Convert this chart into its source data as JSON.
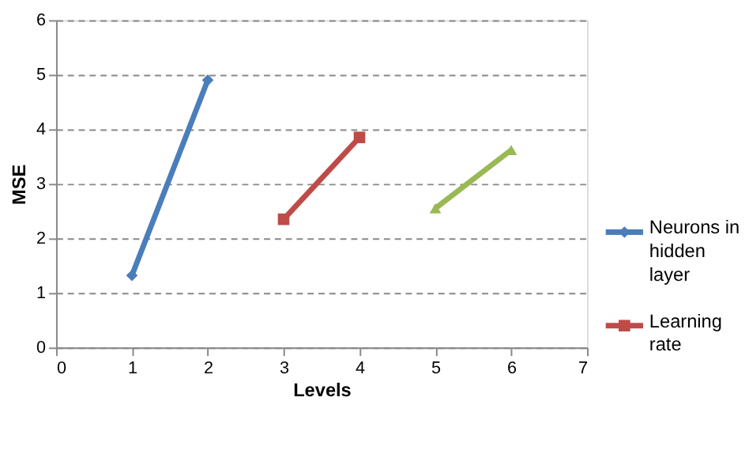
{
  "chart_data": {
    "type": "line",
    "xlabel": "Levels",
    "ylabel": "MSE",
    "xlim": [
      0,
      7
    ],
    "xticks": [
      0,
      1,
      2,
      3,
      4,
      5,
      6,
      7
    ],
    "ylim": [
      0,
      6
    ],
    "yticks": [
      0,
      1,
      2,
      3,
      4,
      5,
      6
    ],
    "grid": "y",
    "legend": "right",
    "series": [
      {
        "name": "Neurons in hidden layer",
        "color": "#4a7ebb",
        "marker": "diamond",
        "x": [
          1,
          2
        ],
        "values": [
          1.32,
          4.9
        ]
      },
      {
        "name": "Learning rate",
        "color": "#be4b48",
        "marker": "square",
        "x": [
          3,
          4
        ],
        "values": [
          2.35,
          3.85
        ]
      },
      {
        "color": "#98b954",
        "marker": "triangle",
        "x": [
          5,
          6
        ],
        "values": [
          2.55,
          3.62
        ]
      }
    ]
  }
}
